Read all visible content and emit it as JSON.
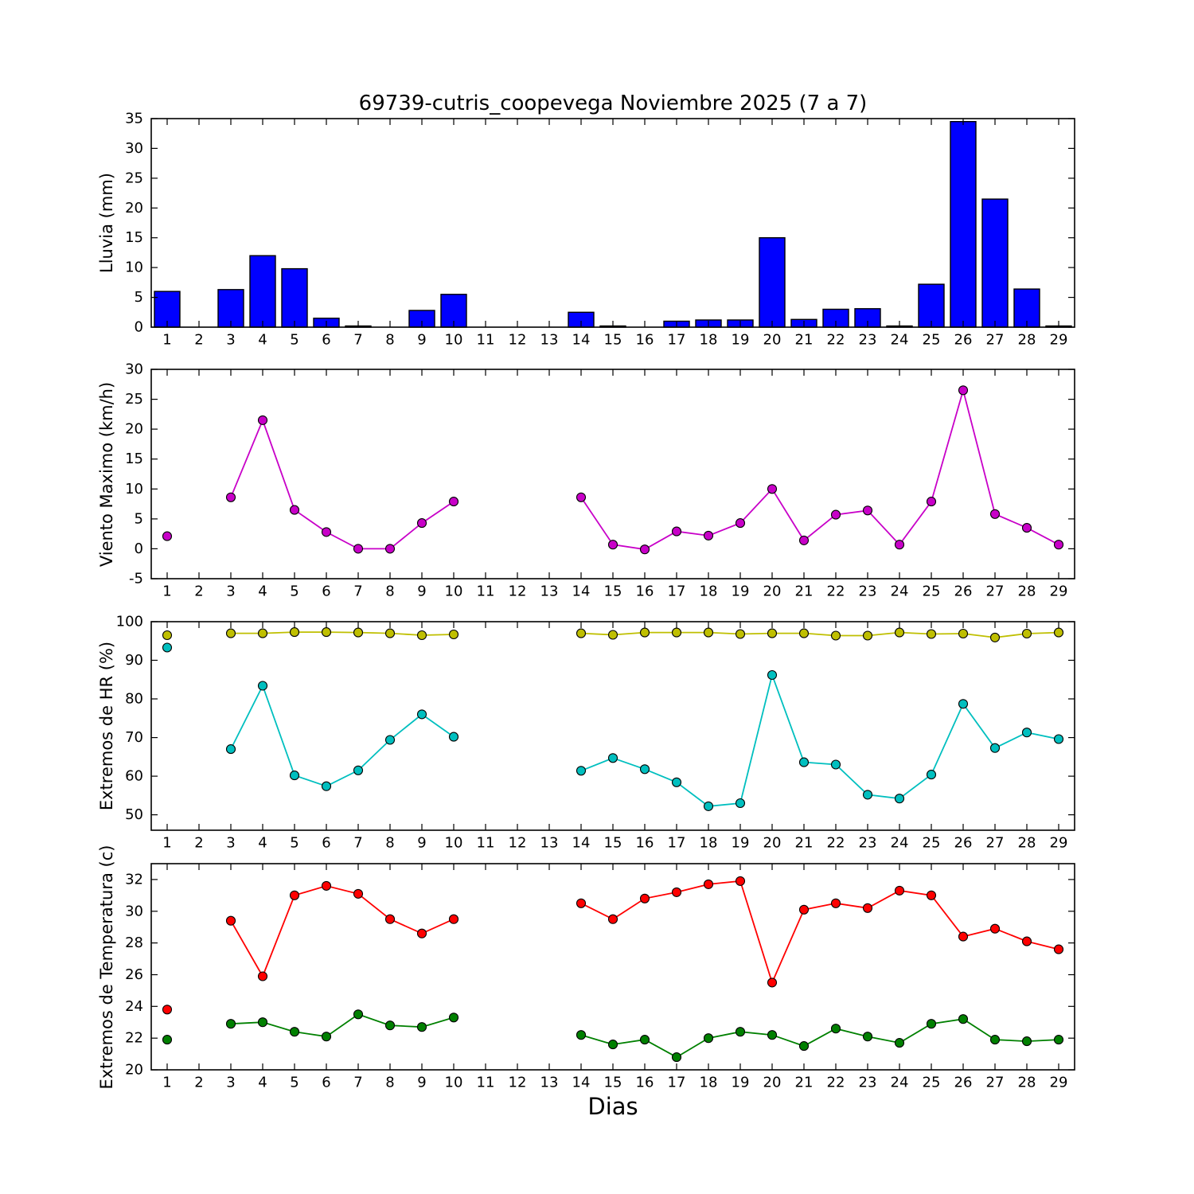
{
  "title": "69739-cutris_coopevega Noviembre 2025  (7 a 7)",
  "xlabel": "Dias",
  "chart_data": [
    {
      "type": "bar",
      "ylabel": "Lluvia (mm)",
      "ylim": [
        0,
        35
      ],
      "yticks": [
        0,
        5,
        10,
        15,
        20,
        25,
        30,
        35
      ],
      "color": "#0000ff",
      "days": [
        1,
        2,
        3,
        4,
        5,
        6,
        7,
        8,
        9,
        10,
        11,
        12,
        13,
        14,
        15,
        16,
        17,
        18,
        19,
        20,
        21,
        22,
        23,
        24,
        25,
        26,
        27,
        28,
        29
      ],
      "values": [
        6.0,
        0,
        6.3,
        12.0,
        9.8,
        1.5,
        0.2,
        0,
        2.8,
        5.5,
        0,
        0,
        0,
        2.5,
        0.2,
        0,
        1.0,
        1.2,
        1.2,
        15.0,
        1.3,
        3.0,
        3.1,
        0.2,
        7.2,
        34.5,
        21.5,
        6.4,
        0.2
      ]
    },
    {
      "type": "line",
      "ylabel": "Viento Maximo (km/h)",
      "ylim": [
        -5,
        30
      ],
      "yticks": [
        -5,
        0,
        5,
        10,
        15,
        20,
        25,
        30
      ],
      "days": [
        1,
        2,
        3,
        4,
        5,
        6,
        7,
        8,
        9,
        10,
        11,
        12,
        13,
        14,
        15,
        16,
        17,
        18,
        19,
        20,
        21,
        22,
        23,
        24,
        25,
        26,
        27,
        28,
        29
      ],
      "series": [
        {
          "name": "viento-maximo",
          "color": "#c800c8",
          "values": [
            2.1,
            null,
            8.6,
            21.5,
            6.5,
            2.8,
            0.0,
            0.0,
            4.3,
            7.9,
            null,
            null,
            null,
            8.6,
            0.7,
            -0.1,
            2.9,
            2.2,
            4.3,
            10.0,
            1.4,
            5.7,
            6.4,
            0.7,
            7.9,
            26.5,
            5.8,
            3.5,
            0.7
          ]
        }
      ]
    },
    {
      "type": "line",
      "ylabel": "Extremos de HR (%)",
      "ylim": [
        46,
        100
      ],
      "yticks": [
        50,
        60,
        70,
        80,
        90,
        100
      ],
      "days": [
        1,
        2,
        3,
        4,
        5,
        6,
        7,
        8,
        9,
        10,
        11,
        12,
        13,
        14,
        15,
        16,
        17,
        18,
        19,
        20,
        21,
        22,
        23,
        24,
        25,
        26,
        27,
        28,
        29
      ],
      "series": [
        {
          "name": "hr-maxima",
          "color": "#bfbf00",
          "values": [
            96.5,
            null,
            97.0,
            97.0,
            97.3,
            97.3,
            97.2,
            97.0,
            96.5,
            96.7,
            null,
            null,
            null,
            97.0,
            96.6,
            97.2,
            97.2,
            97.2,
            96.8,
            97.0,
            97.0,
            96.4,
            96.4,
            97.2,
            96.8,
            96.9,
            95.9,
            96.9,
            97.2
          ]
        },
        {
          "name": "hr-minima",
          "color": "#00bfbf",
          "values": [
            93.3,
            null,
            67.0,
            83.4,
            60.2,
            57.4,
            61.5,
            69.4,
            76.0,
            70.2,
            null,
            null,
            null,
            61.4,
            64.7,
            61.8,
            58.4,
            52.2,
            53.0,
            86.2,
            63.6,
            63.0,
            55.2,
            54.2,
            60.4,
            78.7,
            67.3,
            71.3,
            69.6
          ]
        }
      ]
    },
    {
      "type": "line",
      "ylabel": "Extremos de Temperatura (c)",
      "ylim": [
        20,
        33
      ],
      "yticks": [
        20,
        22,
        24,
        26,
        28,
        30,
        32
      ],
      "days": [
        1,
        2,
        3,
        4,
        5,
        6,
        7,
        8,
        9,
        10,
        11,
        12,
        13,
        14,
        15,
        16,
        17,
        18,
        19,
        20,
        21,
        22,
        23,
        24,
        25,
        26,
        27,
        28,
        29
      ],
      "series": [
        {
          "name": "temperatura-maxima",
          "color": "#ff0000",
          "values": [
            23.8,
            null,
            29.4,
            25.9,
            31.0,
            31.6,
            31.1,
            29.5,
            28.6,
            29.5,
            null,
            null,
            null,
            30.5,
            29.5,
            30.8,
            31.2,
            31.7,
            31.9,
            25.5,
            30.1,
            30.5,
            30.2,
            31.3,
            31.0,
            28.4,
            28.9,
            28.1,
            27.6
          ]
        },
        {
          "name": "temperatura-minima",
          "color": "#008000",
          "values": [
            21.9,
            null,
            22.9,
            23.0,
            22.4,
            22.1,
            23.5,
            22.8,
            22.7,
            23.3,
            null,
            null,
            null,
            22.2,
            21.6,
            21.9,
            20.8,
            22.0,
            22.4,
            22.2,
            21.5,
            22.6,
            22.1,
            21.7,
            22.9,
            23.2,
            21.9,
            21.8,
            21.9
          ]
        }
      ]
    }
  ]
}
